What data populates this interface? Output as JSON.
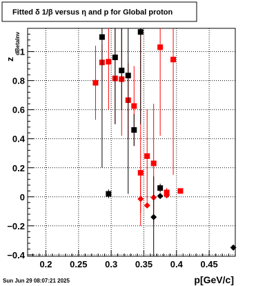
{
  "chart_data": {
    "type": "scatter",
    "title": "Fitted δ 1/β versus η and p for Global proton",
    "xlabel": "p[GeV/c]",
    "ylabel_main": "z",
    "ylabel_sub": "dBetaInv",
    "xlim": [
      0.172,
      0.49
    ],
    "ylim": [
      -0.41,
      1.16
    ],
    "x_ticks": [
      0.2,
      0.25,
      0.3,
      0.35,
      0.4,
      0.45
    ],
    "x_tick_labels": [
      "0.2",
      "0.25",
      "0.3",
      "0.35",
      "0.4",
      "0.45"
    ],
    "y_ticks": [
      -0.4,
      -0.2,
      0,
      0.2,
      0.4,
      0.6,
      0.8,
      1
    ],
    "y_tick_labels": [
      "−0.4",
      "−0.2",
      "0",
      "0.2",
      "0.4",
      "0.6",
      "0.8",
      "1"
    ],
    "grid": true,
    "series": [
      {
        "color": "#ff0000",
        "marker": "square",
        "points": [
          {
            "x": 0.276,
            "y": 0.785,
            "lo": 0.53,
            "hi": 1.04
          },
          {
            "x": 0.286,
            "y": 0.925,
            "lo": 0.8,
            "hi": 1.05
          },
          {
            "x": 0.296,
            "y": 0.93,
            "lo": 0.6,
            "hi": 1.16
          },
          {
            "x": 0.306,
            "y": 0.815,
            "lo": 0.5,
            "hi": 1.16
          },
          {
            "x": 0.316,
            "y": 0.81,
            "lo": 0.42,
            "hi": 1.16
          },
          {
            "x": 0.326,
            "y": 0.665,
            "lo": 0.4,
            "hi": 0.92
          },
          {
            "x": 0.335,
            "y": 0.625,
            "lo": 0.35,
            "hi": 0.9
          },
          {
            "x": 0.345,
            "y": 0.165,
            "lo": -0.11,
            "hi": 1.16
          },
          {
            "x": 0.355,
            "y": 0.28,
            "lo": -0.05,
            "hi": 0.6
          },
          {
            "x": 0.365,
            "y": 0.23,
            "lo": -0.19,
            "hi": 0.64
          },
          {
            "x": 0.375,
            "y": 1.03,
            "lo": 0.42,
            "hi": 1.16
          },
          {
            "x": 0.385,
            "y": 0.03,
            "lo": 0.0,
            "hi": 0.06
          },
          {
            "x": 0.395,
            "y": 0.945,
            "lo": 0.15,
            "hi": 1.16
          },
          {
            "x": 0.406,
            "y": 0.04,
            "lo": 0.025,
            "hi": 0.055
          }
        ]
      },
      {
        "color": "#ff0000",
        "marker": "diamond",
        "points": [
          {
            "x": 0.345,
            "y": -0.015,
            "lo": -0.2,
            "hi": 0.17
          },
          {
            "x": 0.355,
            "y": -0.06,
            "lo": -0.06,
            "hi": -0.06
          },
          {
            "x": 0.365,
            "y": -0.005,
            "lo": -0.005,
            "hi": -0.005
          },
          {
            "x": 0.385,
            "y": 0.01,
            "lo": 0.01,
            "hi": 0.01
          }
        ]
      },
      {
        "color": "#000000",
        "marker": "square",
        "points": [
          {
            "x": 0.286,
            "y": 1.1,
            "lo": 0.2,
            "hi": 1.16
          },
          {
            "x": 0.296,
            "y": 0.02,
            "lo": -0.01,
            "hi": 0.05
          },
          {
            "x": 0.306,
            "y": 0.96,
            "lo": 0.5,
            "hi": 1.16
          },
          {
            "x": 0.316,
            "y": 0.87,
            "lo": 0.6,
            "hi": 1.16
          },
          {
            "x": 0.326,
            "y": 0.835,
            "lo": 0.02,
            "hi": 1.16
          },
          {
            "x": 0.335,
            "y": 0.46,
            "lo": 0.35,
            "hi": 0.57
          },
          {
            "x": 0.345,
            "y": 1.135,
            "lo": 0.5,
            "hi": 1.16
          },
          {
            "x": 0.375,
            "y": 0.06,
            "lo": 0.03,
            "hi": 0.09
          }
        ]
      },
      {
        "color": "#000000",
        "marker": "diamond",
        "points": [
          {
            "x": 0.365,
            "y": -0.14,
            "lo": -0.41,
            "hi": 0.14
          },
          {
            "x": 0.375,
            "y": 0.005,
            "lo": 0.005,
            "hi": 0.005
          },
          {
            "x": 0.487,
            "y": -0.35,
            "lo": -0.35,
            "hi": -0.35
          }
        ]
      }
    ]
  },
  "footer": {
    "timestamp": "Sun Jun 29 08:07:21 2025"
  }
}
